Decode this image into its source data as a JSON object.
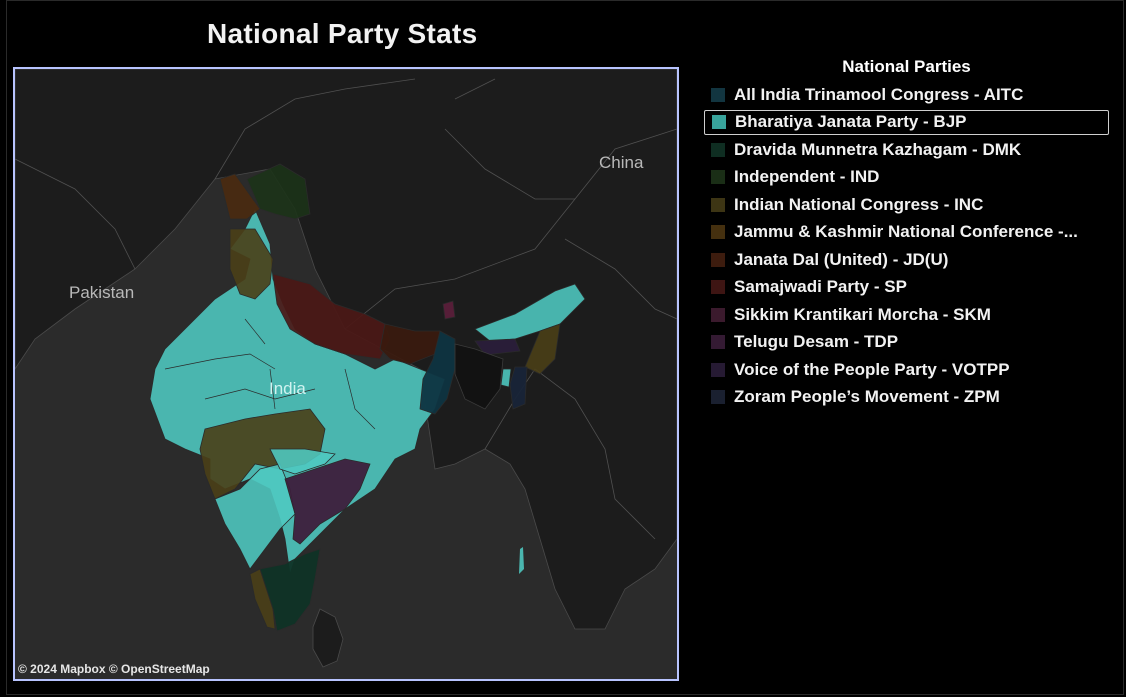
{
  "title": "National Party Stats",
  "map": {
    "labels": {
      "pakistan": "Pakistan",
      "china": "China",
      "india": "India"
    },
    "attribution": "© 2024 Mapbox  © OpenStreetMap",
    "colors": {
      "background": "#2b2b2b",
      "land": "#1a1a1a",
      "bjp": "#4fc9c1",
      "inc": "#4a3f17",
      "sp": "#4b1816",
      "jdu": "#3a1a0e",
      "tdp": "#3d1f3c",
      "dmk": "#0f3326",
      "aitc": "#0e3441",
      "jknc": "#4a2a10",
      "ind": "#1c3318",
      "skm": "#5a1f3a",
      "zpm": "#182438",
      "votpp": "#2a1e3a"
    }
  },
  "legend": {
    "title": "National Parties",
    "items": [
      {
        "label": "All India Trinamool Congress - AITC",
        "color": "#123540",
        "selected": false
      },
      {
        "label": "Bharatiya Janata Party - BJP",
        "color": "#38a39b",
        "selected": true
      },
      {
        "label": "Dravida Munnetra Kazhagam - DMK",
        "color": "#0f2e22",
        "selected": false
      },
      {
        "label": "Independent - IND",
        "color": "#1a2e16",
        "selected": false
      },
      {
        "label": "Indian National Congress - INC",
        "color": "#3d3514",
        "selected": false
      },
      {
        "label": "Jammu & Kashmir National Conference -...",
        "color": "#45300f",
        "selected": false
      },
      {
        "label": "Janata Dal (United) - JD(U)",
        "color": "#3d1c0e",
        "selected": false
      },
      {
        "label": "Samajwadi Party - SP",
        "color": "#3e1513",
        "selected": false
      },
      {
        "label": "Sikkim Krantikari Morcha - SKM",
        "color": "#3b1a2d",
        "selected": false
      },
      {
        "label": "Telugu Desam - TDP",
        "color": "#341a33",
        "selected": false
      },
      {
        "label": "Voice of the People Party - VOTPP",
        "color": "#261a33",
        "selected": false
      },
      {
        "label": "Zoram People’s Movement - ZPM",
        "color": "#1a2030",
        "selected": false
      }
    ]
  }
}
